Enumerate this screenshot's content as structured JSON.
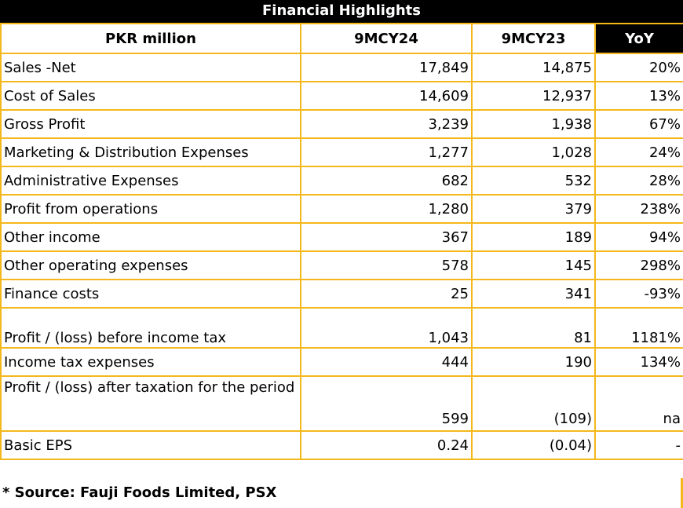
{
  "title": "Financial Highlights",
  "header": {
    "label": "PKR million",
    "col1": "9MCY24",
    "col2": "9MCY23",
    "col3": "YoY"
  },
  "rows": [
    {
      "label": "Sales -Net",
      "v1": "17,849",
      "v2": "14,875",
      "yoy": "20%"
    },
    {
      "label": "Cost of Sales",
      "v1": "14,609",
      "v2": "12,937",
      "yoy": "13%"
    },
    {
      "label": "Gross Profit",
      "v1": "3,239",
      "v2": "1,938",
      "yoy": "67%"
    },
    {
      "label": "Marketing & Distribution Expenses",
      "v1": "1,277",
      "v2": "1,028",
      "yoy": "24%"
    },
    {
      "label": "Administrative Expenses",
      "v1": "682",
      "v2": "532",
      "yoy": "28%"
    },
    {
      "label": "Profit from operations",
      "v1": "1,280",
      "v2": "379",
      "yoy": "238%"
    },
    {
      "label": "Other income",
      "v1": "367",
      "v2": "189",
      "yoy": "94%"
    },
    {
      "label": "Other operating expenses",
      "v1": "578",
      "v2": "145",
      "yoy": "298%"
    },
    {
      "label": "Finance costs",
      "v1": "25",
      "v2": "341",
      "yoy": "-93%"
    },
    {
      "label": "Profit / (loss) before income tax",
      "v1": "1,043",
      "v2": "81",
      "yoy": "1181%"
    },
    {
      "label": "Income tax expenses",
      "v1": "444",
      "v2": "190",
      "yoy": "134%"
    },
    {
      "label": "Profit / (loss) after taxation for the period",
      "v1": "599",
      "v2": "(109)",
      "yoy": "na"
    },
    {
      "label": "Basic EPS",
      "v1": "0.24",
      "v2": "(0.04)",
      "yoy": "-"
    }
  ],
  "source": "* Source: Fauji Foods Limited, PSX",
  "colors": {
    "border": "#f4b81c",
    "header_bg": "#000000"
  }
}
